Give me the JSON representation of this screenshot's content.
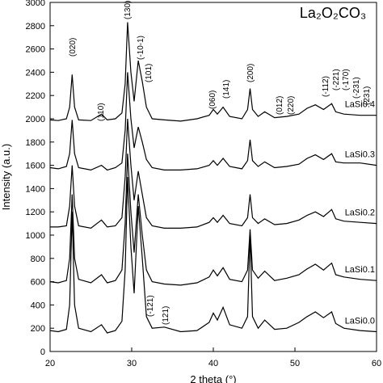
{
  "chart_data": {
    "type": "line",
    "title": "La₂O₂CO₃",
    "x_label": "2 theta (°)",
    "y_label": "Intensity (a.u.)",
    "xlim": [
      20,
      60
    ],
    "xticks": [
      20,
      30,
      40,
      50,
      60
    ],
    "ylim": [
      0,
      3000
    ],
    "yticks": [
      0,
      200,
      400,
      600,
      800,
      1000,
      1200,
      1400,
      1600,
      1800,
      2000,
      2200,
      2400,
      2600,
      2800,
      3000
    ],
    "grid": false,
    "annotations": [
      "(020)",
      "(110)",
      "(130)",
      "(-10-1)",
      "(101)",
      "(060)",
      "(141)",
      "(200)",
      "(012)",
      "(220)",
      "(-112)",
      "(-221)",
      "(-170)",
      "(-231)",
      "(231)",
      "(-121)",
      "(121)"
    ],
    "x": [
      20,
      21,
      22,
      22.4,
      22.7,
      23,
      23.5,
      25,
      26.3,
      27,
      28,
      28.8,
      29.2,
      29.5,
      29.9,
      30.3,
      30.8,
      31.3,
      31.8,
      32.5,
      34,
      36,
      38,
      39.5,
      40,
      40.5,
      41.2,
      42,
      43.5,
      44.2,
      44.5,
      44.8,
      45.5,
      46.3,
      47.5,
      49,
      50.5,
      51.5,
      52.5,
      53.5,
      54.5,
      55,
      56,
      58,
      60
    ],
    "series": [
      {
        "name": "LaSi0.4",
        "color": "#000000",
        "values": [
          1990,
          1985,
          2000,
          2100,
          2380,
          2100,
          1990,
          1985,
          2040,
          1990,
          2000,
          2050,
          2300,
          2830,
          2400,
          2150,
          2500,
          2320,
          2100,
          2000,
          1990,
          1980,
          2000,
          2030,
          2080,
          2040,
          2100,
          2020,
          2000,
          2080,
          2260,
          2080,
          2020,
          2060,
          2010,
          2020,
          2040,
          2090,
          2120,
          2080,
          2130,
          2060,
          2040,
          2030,
          2030
        ]
      },
      {
        "name": "LaSi0.3",
        "color": "#000000",
        "values": [
          1580,
          1570,
          1590,
          1700,
          1990,
          1700,
          1580,
          1560,
          1600,
          1560,
          1580,
          1620,
          1900,
          2400,
          2000,
          1750,
          1930,
          1800,
          1650,
          1580,
          1560,
          1560,
          1570,
          1600,
          1640,
          1600,
          1660,
          1590,
          1570,
          1640,
          1820,
          1640,
          1590,
          1630,
          1580,
          1590,
          1610,
          1660,
          1690,
          1650,
          1700,
          1630,
          1620,
          1620,
          1600
        ]
      },
      {
        "name": "LaSi0.2",
        "color": "#000000",
        "values": [
          1070,
          1070,
          1080,
          1250,
          1600,
          1250,
          1080,
          1060,
          1130,
          1070,
          1080,
          1150,
          1500,
          2000,
          1600,
          1300,
          1550,
          1350,
          1150,
          1080,
          1060,
          1060,
          1070,
          1110,
          1150,
          1110,
          1170,
          1100,
          1080,
          1150,
          1350,
          1150,
          1100,
          1140,
          1090,
          1100,
          1130,
          1170,
          1200,
          1160,
          1220,
          1140,
          1120,
          1110,
          1100
        ]
      },
      {
        "name": "LaSi0.1",
        "color": "#000000",
        "values": [
          600,
          590,
          610,
          800,
          1350,
          800,
          620,
          590,
          660,
          590,
          610,
          700,
          1100,
          1700,
          1200,
          850,
          1350,
          1000,
          700,
          600,
          580,
          570,
          590,
          640,
          700,
          650,
          720,
          620,
          600,
          700,
          1050,
          700,
          630,
          690,
          610,
          630,
          660,
          710,
          750,
          700,
          760,
          660,
          640,
          620,
          610
        ]
      },
      {
        "name": "LaSi0.0",
        "color": "#000000",
        "values": [
          180,
          170,
          190,
          400,
          1200,
          400,
          200,
          170,
          230,
          160,
          180,
          260,
          700,
          1500,
          900,
          500,
          1250,
          800,
          300,
          200,
          210,
          170,
          180,
          250,
          330,
          270,
          380,
          230,
          200,
          300,
          1000,
          300,
          200,
          270,
          190,
          200,
          250,
          300,
          340,
          290,
          340,
          240,
          200,
          180,
          170
        ]
      }
    ]
  }
}
